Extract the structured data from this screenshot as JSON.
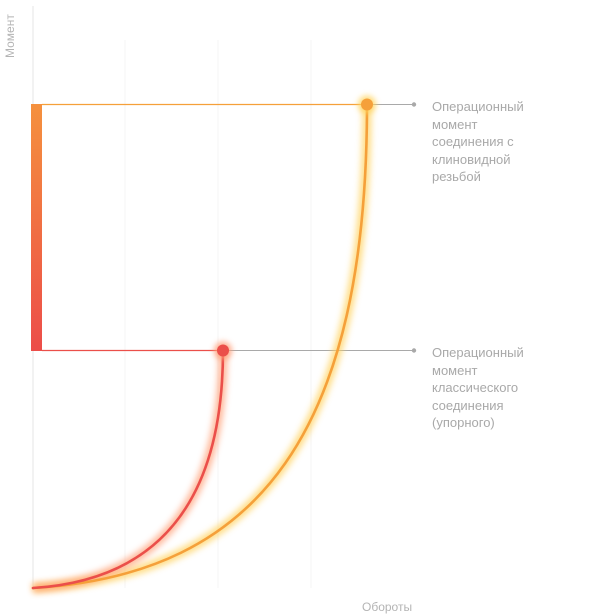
{
  "axes": {
    "y_label": "Момент",
    "x_label": "Обороты"
  },
  "annotations": {
    "wedge": {
      "lines": [
        "Операционный",
        "момент",
        "соединения с",
        "клиновидной",
        "резьбой"
      ]
    },
    "classic": {
      "lines": [
        "Операционный",
        "момент",
        "классического",
        "соединения",
        "(упорного)"
      ]
    }
  },
  "colors": {
    "wedge_curve": "#f5a03a",
    "classic_curve": "#eb4f4a",
    "guide_line": "#a9a9a9",
    "text": "#a9a9a9",
    "axis": "#e8e8e8"
  }
}
